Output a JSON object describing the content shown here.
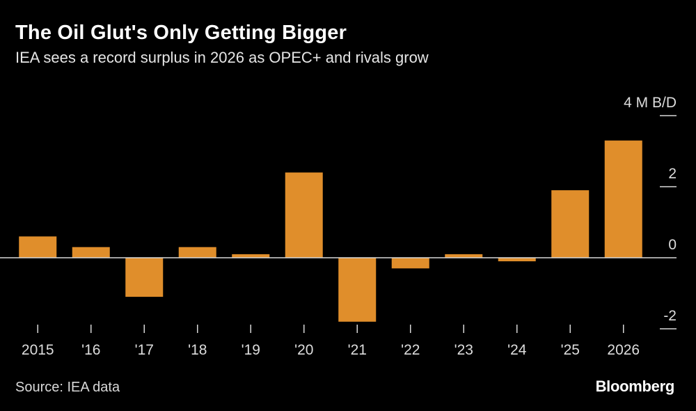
{
  "title": "The Oil Glut's Only Getting Bigger",
  "subtitle": "IEA sees a record surplus in 2026 as OPEC+ and rivals grow",
  "source": "Source: IEA data",
  "brand": "Bloomberg",
  "colors": {
    "bar": "#E08E2B",
    "background": "#000000",
    "axis": "#d8d8d8"
  },
  "chart_data": {
    "type": "bar",
    "title": "The Oil Glut's Only Getting Bigger",
    "subtitle": "IEA sees a record surplus in 2026 as OPEC+ and rivals grow",
    "categories": [
      "2015",
      "'16",
      "'17",
      "'18",
      "'19",
      "'20",
      "'21",
      "'22",
      "'23",
      "'24",
      "'25",
      "2026"
    ],
    "values": [
      0.6,
      0.3,
      -1.1,
      0.3,
      0.1,
      2.4,
      -1.8,
      -0.3,
      0.1,
      -0.1,
      1.9,
      3.3
    ],
    "ylim": [
      -2,
      4
    ],
    "yticks": [
      4,
      2,
      0,
      -2
    ],
    "ytick_labels": [
      "4 M B/D",
      "2",
      "0",
      "-2"
    ],
    "y_axis_position": "right",
    "grid": false,
    "legend": "none"
  }
}
